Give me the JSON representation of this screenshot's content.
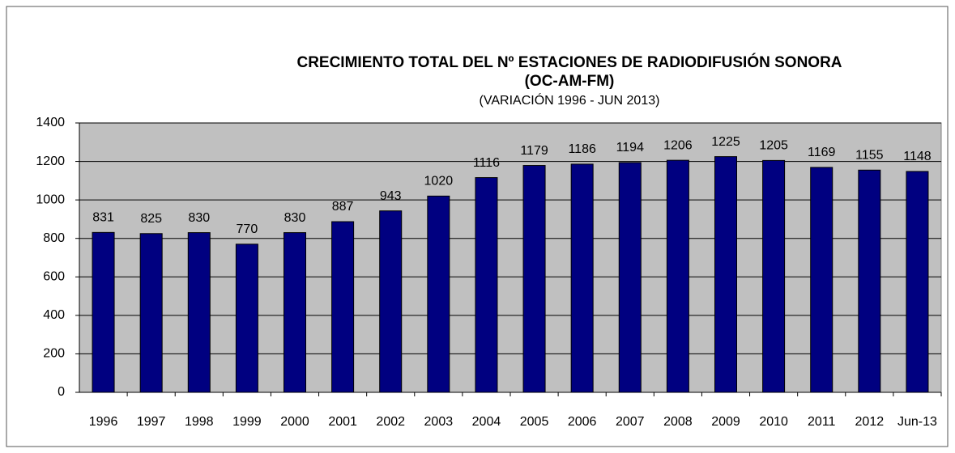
{
  "chart_data": {
    "type": "bar",
    "title_lines": [
      "CRECIMIENTO TOTAL DEL Nº ESTACIONES DE RADIODIFUSIÓN SONORA",
      "(OC-AM-FM)",
      "(VARIACIÓN 1996 -  JUN 2013)"
    ],
    "categories": [
      "1996",
      "1997",
      "1998",
      "1999",
      "2000",
      "2001",
      "2002",
      "2003",
      "2004",
      "2005",
      "2006",
      "2007",
      "2008",
      "2009",
      "2010",
      "2011",
      "2012",
      "Jun-13"
    ],
    "values": [
      831,
      825,
      830,
      770,
      830,
      887,
      943,
      1020,
      1116,
      1179,
      1186,
      1194,
      1206,
      1225,
      1205,
      1169,
      1155,
      1148
    ],
    "color": "#000080",
    "ylim": [
      0,
      1400
    ],
    "yticks": [
      0,
      200,
      400,
      600,
      800,
      1000,
      1200,
      1400
    ],
    "grid": true
  }
}
